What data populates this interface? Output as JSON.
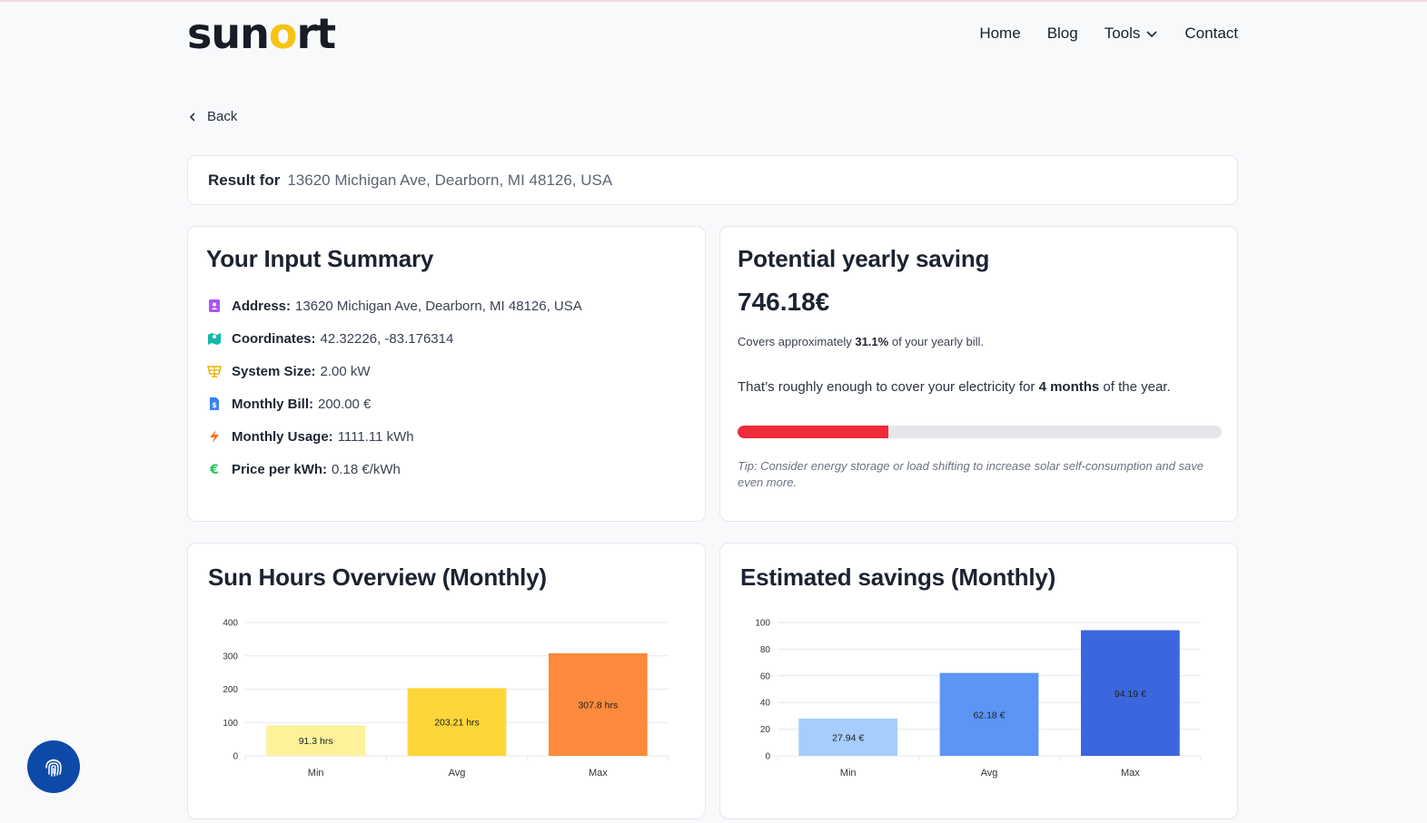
{
  "header": {
    "logo_pre": "sun",
    "logo_o": "o",
    "logo_post": "rt",
    "nav": [
      {
        "label": "Home"
      },
      {
        "label": "Blog"
      },
      {
        "label": "Tools",
        "icon": "chevron-down-icon"
      },
      {
        "label": "Contact"
      }
    ]
  },
  "back_label": "Back",
  "result": {
    "label": "Result for",
    "address": "13620 Michigan Ave, Dearborn, MI 48126, USA"
  },
  "summary": {
    "title": "Your Input Summary",
    "items": [
      {
        "label": "Address:",
        "value": "13620 Michigan Ave, Dearborn, MI 48126, USA",
        "icon": "contact-book-icon",
        "color": "#a855f7"
      },
      {
        "label": "Coordinates:",
        "value": "42.32226, -83.176314",
        "icon": "map-icon",
        "color": "#14b8a6"
      },
      {
        "label": "System Size:",
        "value": "2.00 kW",
        "icon": "solar-panel-icon",
        "color": "#eab308"
      },
      {
        "label": "Monthly Bill:",
        "value": "200.00 €",
        "icon": "bill-icon",
        "color": "#3b82f6"
      },
      {
        "label": "Monthly Usage:",
        "value": "1111.11 kWh",
        "icon": "lightning-icon",
        "color": "#f97316"
      },
      {
        "label": "Price per kWh:",
        "value": "0.18 €/kWh",
        "icon": "euro-icon",
        "color": "#22c55e"
      }
    ]
  },
  "saving": {
    "title": "Potential yearly saving",
    "amount": "746.18€",
    "covers_pre": "Covers approximately",
    "covers_pct": "31.1%",
    "covers_post": "of your yearly bill.",
    "roughly_pre": "That’s roughly enough to cover your electricity for",
    "roughly_months": "4 months",
    "roughly_post": "of the year.",
    "progress": 0.311,
    "progress_color": "#ef2b3a",
    "tip": "Tip: Consider energy storage or load shifting to increase solar self-consumption and save even more."
  },
  "fab_icon": "fingerprint-icon",
  "chart_data": [
    {
      "type": "bar",
      "title": "Sun Hours Overview (Monthly)",
      "categories": [
        "Min",
        "Avg",
        "Max"
      ],
      "values": [
        91.3,
        203.21,
        307.8
      ],
      "labels": [
        "91.3 hrs",
        "203.21 hrs",
        "307.8 hrs"
      ],
      "colors": [
        "#fdf19a",
        "#fdd63a",
        "#fb8a3c"
      ],
      "ylim": [
        0,
        400
      ],
      "yticks": [
        0,
        100,
        200,
        300,
        400
      ],
      "grid": true
    },
    {
      "type": "bar",
      "title": "Estimated savings (Monthly)",
      "categories": [
        "Min",
        "Avg",
        "Max"
      ],
      "values": [
        27.94,
        62.18,
        94.19
      ],
      "labels": [
        "27.94 €",
        "62.18 €",
        "94.19 €"
      ],
      "colors": [
        "#a6cdfb",
        "#5b95f5",
        "#3c66dd"
      ],
      "ylim": [
        0,
        100
      ],
      "yticks": [
        0,
        20,
        40,
        60,
        80,
        100
      ],
      "grid": true
    }
  ]
}
